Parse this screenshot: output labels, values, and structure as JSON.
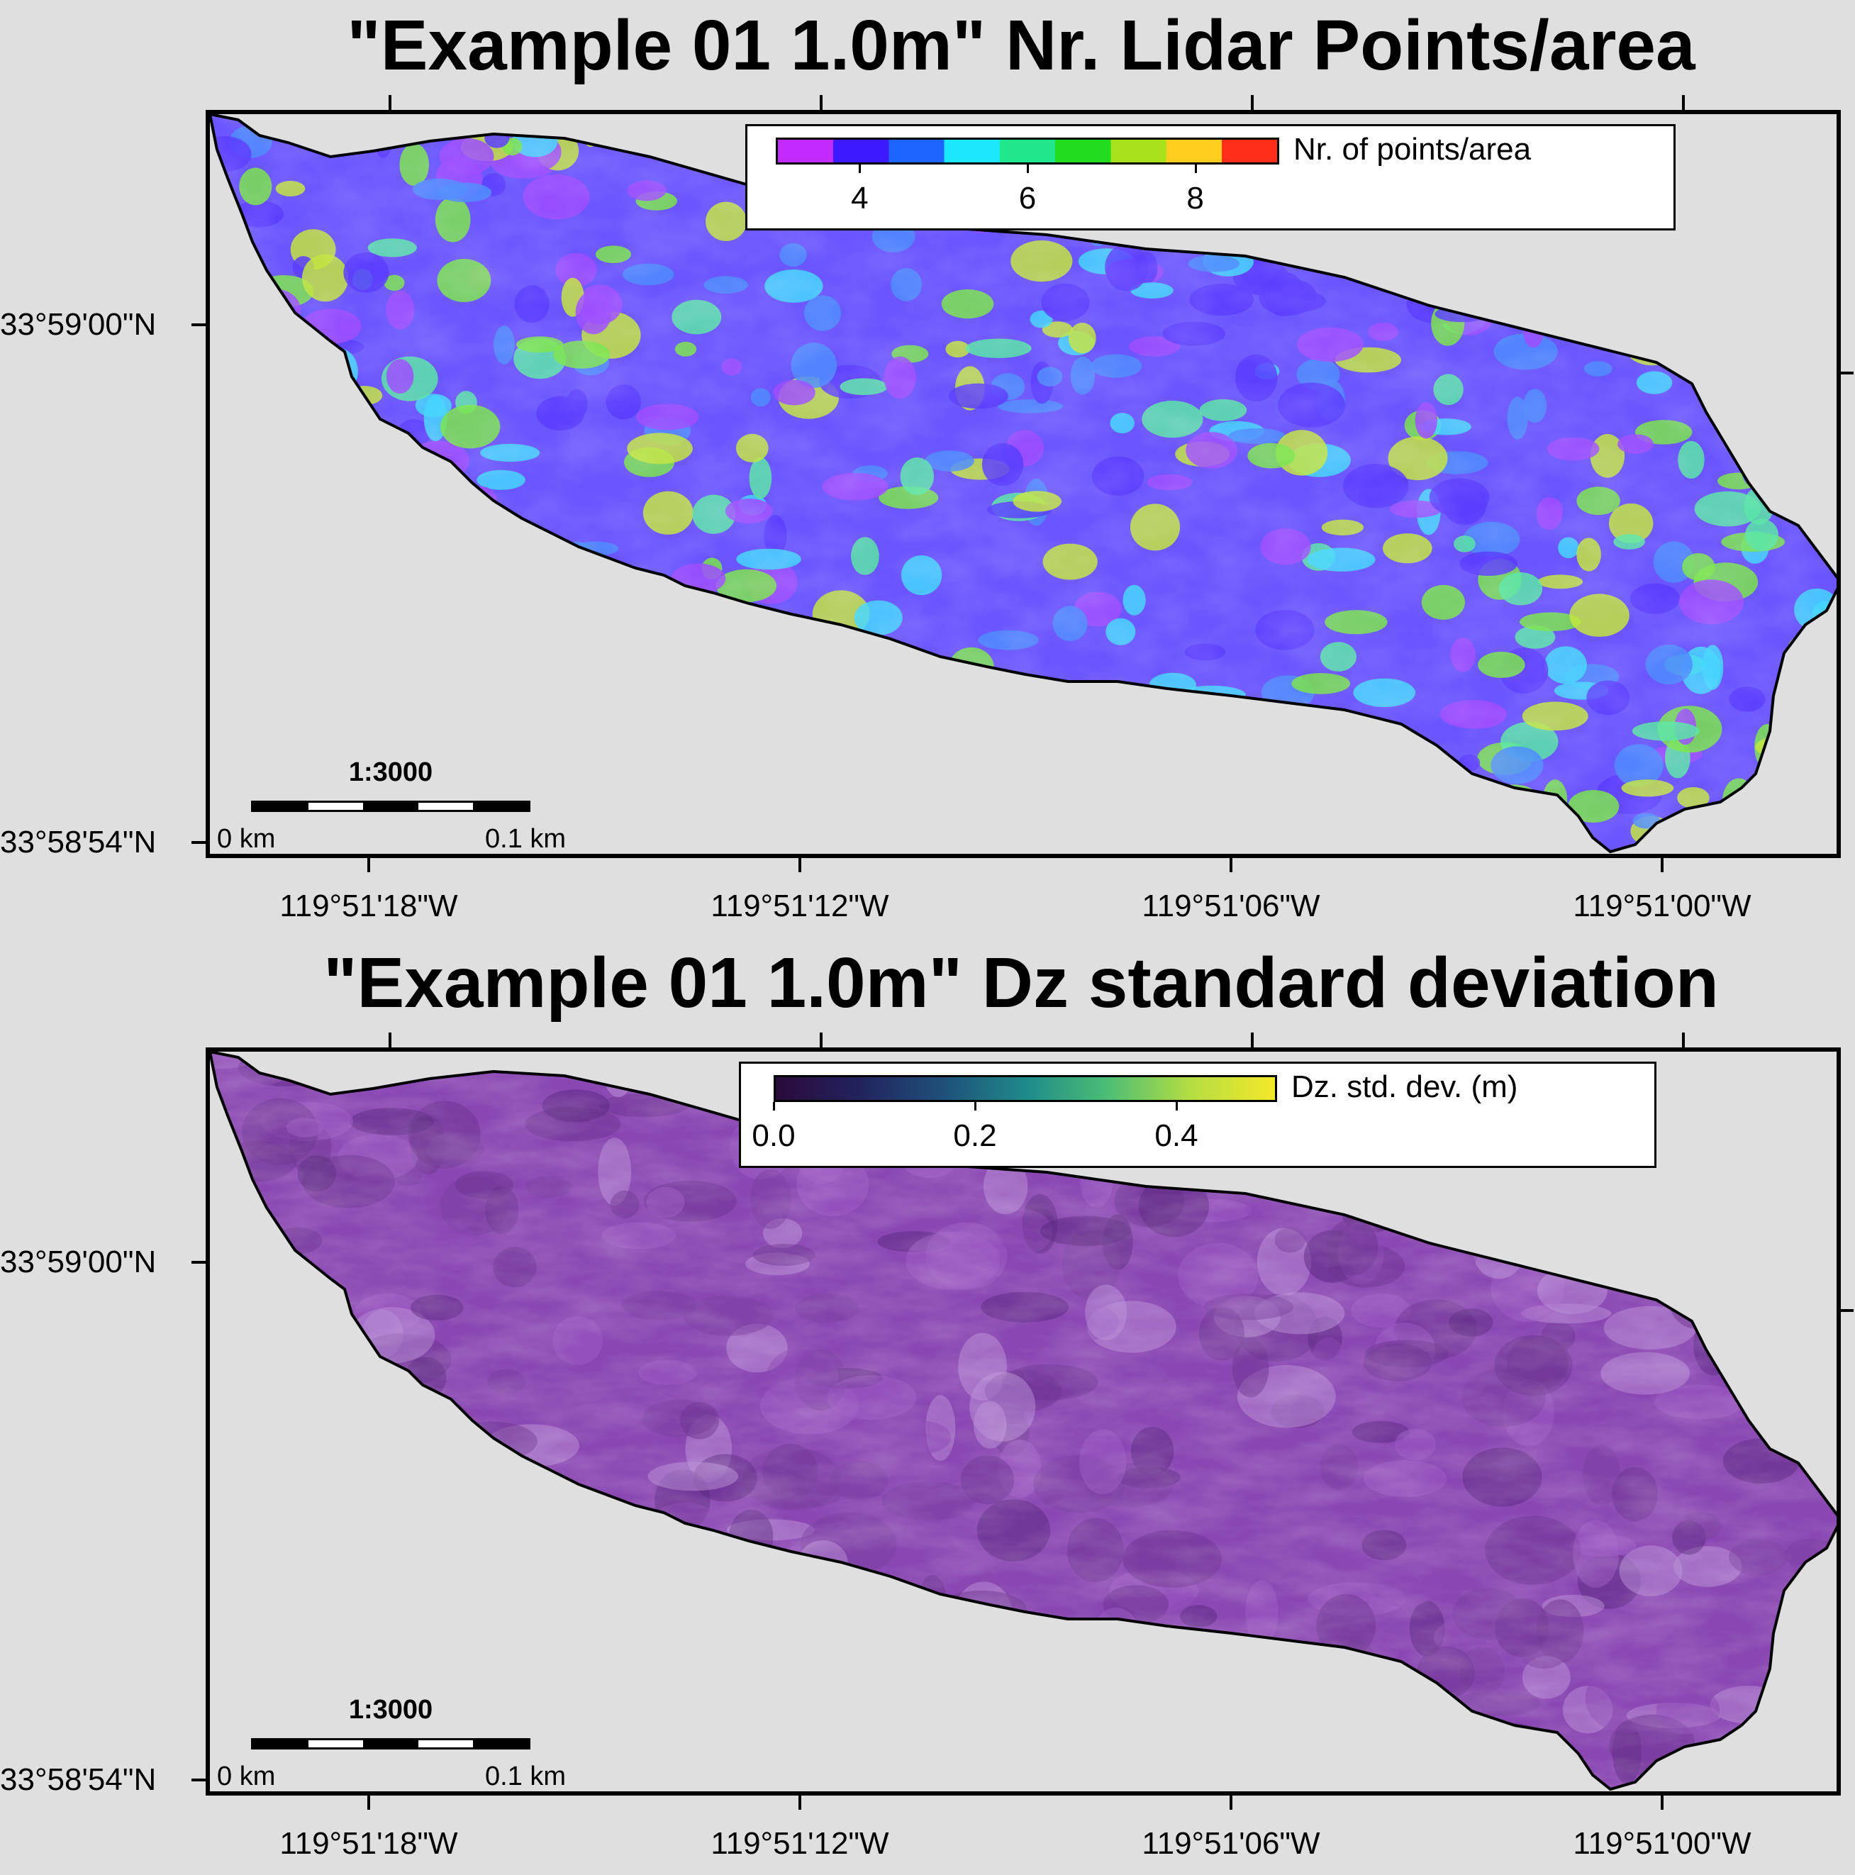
{
  "maps": [
    {
      "id": "top",
      "title": "\"Example 01 1.0m\" Nr. Lidar Points/area",
      "legend": {
        "title": "Nr. of points/area",
        "tick_labels": [
          "4",
          "6",
          "8"
        ],
        "tick_values": [
          4,
          6,
          8
        ],
        "range": [
          3,
          9
        ],
        "colors": [
          "#c12bff",
          "#3c19ff",
          "#1e64ff",
          "#19e8ff",
          "#21e68a",
          "#22dd1f",
          "#a5e21a",
          "#ffce1e",
          "#ff2e1a"
        ]
      },
      "fill_colors": [
        "#9e4dff",
        "#5a3dff",
        "#4f8cff",
        "#45d6ff",
        "#5ae5a6",
        "#7ae44b",
        "#c2e43f"
      ],
      "scale": {
        "ratio": "1:3000",
        "left": "0 km",
        "right": "0.1 km"
      },
      "lat_labels": [
        "33°59'00\"N",
        "33°58'54\"N"
      ],
      "lon_labels": [
        "119°51'18\"W",
        "119°51'12\"W",
        "119°51'06\"W",
        "119°51'00\"W"
      ]
    },
    {
      "id": "bottom",
      "title": "\"Example 01 1.0m\" Dz standard deviation",
      "legend": {
        "title": "Dz. std. dev. (m)",
        "tick_labels": [
          "0.0",
          "0.2",
          "0.4"
        ],
        "tick_values": [
          0.0,
          0.2,
          0.4
        ],
        "range": [
          0.0,
          0.5
        ],
        "colors": [
          "#2a0a3a",
          "#22235e",
          "#1f4f7a",
          "#208a8b",
          "#4dbe73",
          "#b6dd42",
          "#f3e829"
        ]
      },
      "fill_colors": [
        "#7a3fa0",
        "#8b48b3",
        "#9d5cc4",
        "#b98fd8",
        "#6b3390",
        "#5a2a80"
      ],
      "scale": {
        "ratio": "1:3000",
        "left": "0 km",
        "right": "0.1 km"
      },
      "lat_labels": [
        "33°59'00\"N",
        "33°58'54\"N"
      ],
      "lon_labels": [
        "119°51'18\"W",
        "119°51'12\"W",
        "119°51'06\"W",
        "119°51'00\"W"
      ]
    }
  ]
}
